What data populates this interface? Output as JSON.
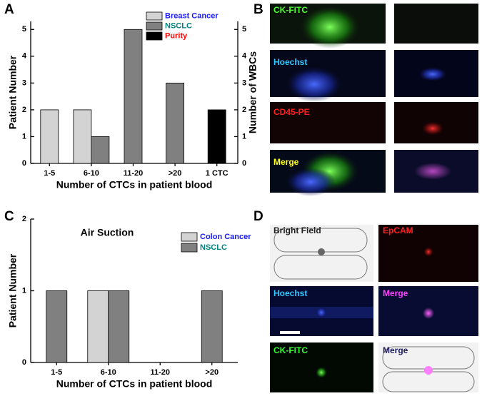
{
  "panel_labels": [
    "A",
    "B",
    "C",
    "D"
  ],
  "panel_B": [
    "CK-FITC",
    "Hoechst",
    "CD45-PE",
    "Merge"
  ],
  "panel_D": [
    "Bright Field",
    "EpCAM",
    "Hoechst",
    "Merge",
    "CK-FITC",
    "Merge"
  ],
  "chart_data": [
    {
      "type": "bar",
      "categories": [
        "1-5",
        "6-10",
        "11-20",
        ">20",
        "1 CTC"
      ],
      "x_label": "Number of CTCs in patient blood",
      "y_label": "Patient Number",
      "y2_label": "Number of WBCs",
      "series": [
        {
          "name": "Breast Cancer",
          "color": "#d3d3d3",
          "label_color": "#1a1aff",
          "values": [
            2,
            2,
            null,
            null,
            null
          ]
        },
        {
          "name": "NSCLC",
          "color": "#808080",
          "label_color": "#008080",
          "values": [
            null,
            1,
            5,
            3,
            null
          ]
        },
        {
          "name": "Purity",
          "color": "#000000",
          "label_color": "#ff0000",
          "axis": "y2",
          "values": [
            null,
            null,
            null,
            null,
            2
          ]
        }
      ],
      "ylim": [
        0,
        5.3
      ],
      "yticks": [
        0,
        1,
        2,
        3,
        4,
        5
      ],
      "y2lim": [
        0,
        5.3
      ],
      "y2ticks": [
        0,
        1,
        2,
        3,
        4,
        5
      ]
    },
    {
      "type": "bar",
      "title": "Air Suction",
      "categories": [
        "1-5",
        "6-10",
        "11-20",
        ">20"
      ],
      "x_label": "Number of CTCs in patient blood",
      "y_label": "Patient Number",
      "series": [
        {
          "name": "Colon Cancer",
          "color": "#d3d3d3",
          "label_color": "#1a1aff",
          "values": [
            null,
            1,
            null,
            null
          ]
        },
        {
          "name": "NSCLC",
          "color": "#808080",
          "label_color": "#008080",
          "values": [
            1,
            1,
            null,
            1
          ]
        }
      ],
      "ylim": [
        0,
        2
      ],
      "yticks": [
        0,
        1,
        2
      ]
    }
  ]
}
